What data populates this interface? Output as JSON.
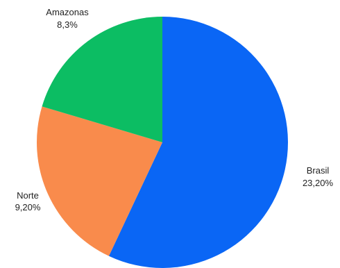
{
  "chart_data": {
    "type": "pie",
    "title": "",
    "slices": [
      {
        "label": "Brasil",
        "value": 23.2,
        "value_label": "23,20%",
        "color": "#0a66f5"
      },
      {
        "label": "Norte",
        "value": 9.2,
        "value_label": "9,20%",
        "color": "#f98b4c"
      },
      {
        "label": "Amazonas",
        "value": 8.3,
        "value_label": "8,3%",
        "color": "#0cbd63"
      }
    ],
    "start_angle_deg": 0,
    "direction": "clockwise",
    "legend": "none"
  }
}
